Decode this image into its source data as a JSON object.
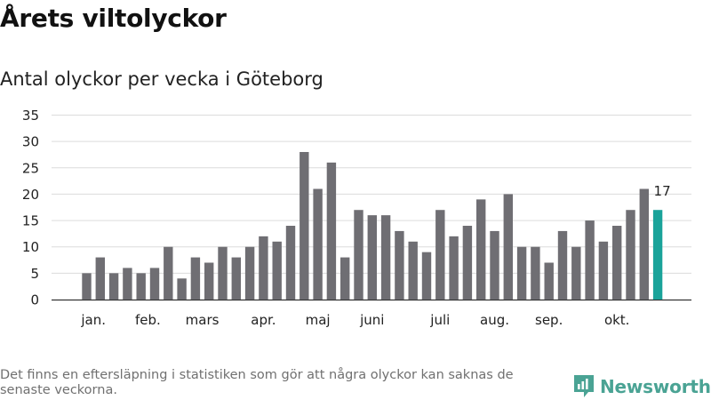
{
  "title": "Årets viltolyckor",
  "subtitle": "Antal olyckor per vecka i Göteborg",
  "footnote": "Det finns en eftersläpning i statistiken som gör att några olyckor kan saknas de senaste veckorna.",
  "brand": {
    "name": "Newsworthy",
    "icon": "newsworthy-logo-icon",
    "color": "#4aa394"
  },
  "colors": {
    "bar": "#6f6e73",
    "highlight": "#1aa39a",
    "grid": "#dcdcdc",
    "axis": "#333333"
  },
  "chart_data": {
    "type": "bar",
    "title": "",
    "xlabel": "",
    "ylabel": "",
    "ylim": [
      0,
      35
    ],
    "yticks": [
      0,
      5,
      10,
      15,
      20,
      25,
      30,
      35
    ],
    "grid": true,
    "values": [
      5,
      8,
      5,
      6,
      5,
      6,
      10,
      4,
      8,
      7,
      10,
      8,
      10,
      12,
      11,
      14,
      28,
      21,
      26,
      8,
      17,
      16,
      16,
      13,
      11,
      9,
      17,
      12,
      14,
      19,
      13,
      20,
      10,
      10,
      7,
      13,
      10,
      15,
      11,
      14,
      17,
      21,
      17
    ],
    "highlight_index": 42,
    "highlight_label": "17",
    "month_labels": [
      {
        "label": "jan.",
        "bar_index": 0.5
      },
      {
        "label": "feb.",
        "bar_index": 4.5
      },
      {
        "label": "mars",
        "bar_index": 8.5
      },
      {
        "label": "apr.",
        "bar_index": 13
      },
      {
        "label": "maj",
        "bar_index": 17
      },
      {
        "label": "juni",
        "bar_index": 21
      },
      {
        "label": "juli",
        "bar_index": 26
      },
      {
        "label": "aug.",
        "bar_index": 30
      },
      {
        "label": "sep.",
        "bar_index": 34
      },
      {
        "label": "okt.",
        "bar_index": 39
      }
    ]
  }
}
